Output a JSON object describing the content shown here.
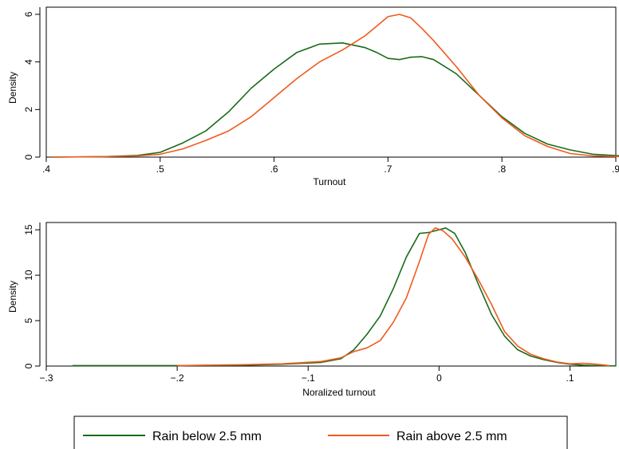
{
  "colors": {
    "below": "#1a6b1a",
    "above": "#f05a1e"
  },
  "legend": {
    "placement": "bottom",
    "entries": [
      {
        "series": "below",
        "label": "Rain below 2.5 mm"
      },
      {
        "series": "above",
        "label": "Rain above 2.5 mm"
      }
    ]
  },
  "chart_data": [
    {
      "type": "line",
      "xlabel": "Turnout",
      "ylabel": "Density",
      "xlim": [
        0.4,
        0.9
      ],
      "ylim": [
        0,
        6.3
      ],
      "xticks": [
        {
          "v": 0.4,
          "t": ".4"
        },
        {
          "v": 0.5,
          "t": ".5"
        },
        {
          "v": 0.6,
          "t": ".6"
        },
        {
          "v": 0.7,
          "t": ".7"
        },
        {
          "v": 0.8,
          "t": ".8"
        },
        {
          "v": 0.9,
          "t": ".9"
        }
      ],
      "yticks": [
        {
          "v": 0,
          "t": "0"
        },
        {
          "v": 2,
          "t": "2"
        },
        {
          "v": 4,
          "t": "4"
        },
        {
          "v": 6,
          "t": "6"
        }
      ],
      "grid": false,
      "series": [
        {
          "key": "below",
          "name": "Rain below 2.5 mm",
          "x": [
            0.405,
            0.45,
            0.48,
            0.5,
            0.52,
            0.54,
            0.56,
            0.58,
            0.6,
            0.62,
            0.64,
            0.66,
            0.68,
            0.69,
            0.7,
            0.71,
            0.72,
            0.73,
            0.74,
            0.75,
            0.76,
            0.78,
            0.8,
            0.82,
            0.84,
            0.86,
            0.88,
            0.905
          ],
          "y": [
            0.0,
            0.02,
            0.07,
            0.2,
            0.6,
            1.1,
            1.9,
            2.9,
            3.7,
            4.4,
            4.75,
            4.8,
            4.6,
            4.4,
            4.15,
            4.1,
            4.2,
            4.22,
            4.1,
            3.8,
            3.5,
            2.6,
            1.7,
            1.0,
            0.55,
            0.3,
            0.12,
            0.05
          ]
        },
        {
          "key": "above",
          "name": "Rain above 2.5 mm",
          "x": [
            0.405,
            0.45,
            0.48,
            0.5,
            0.52,
            0.54,
            0.56,
            0.58,
            0.6,
            0.62,
            0.64,
            0.66,
            0.67,
            0.68,
            0.69,
            0.7,
            0.71,
            0.72,
            0.73,
            0.74,
            0.76,
            0.78,
            0.8,
            0.82,
            0.84,
            0.86,
            0.88,
            0.905
          ],
          "y": [
            0.0,
            0.02,
            0.05,
            0.12,
            0.35,
            0.7,
            1.1,
            1.7,
            2.5,
            3.3,
            4.0,
            4.5,
            4.8,
            5.1,
            5.5,
            5.9,
            6.0,
            5.85,
            5.4,
            4.9,
            3.8,
            2.6,
            1.65,
            0.9,
            0.45,
            0.15,
            0.05,
            0.02
          ]
        }
      ]
    },
    {
      "type": "line",
      "xlabel": "Noralized turnout",
      "ylabel": "Density",
      "xlim": [
        -0.3,
        0.135
      ],
      "ylim": [
        0,
        15.8
      ],
      "xticks": [
        {
          "v": -0.3,
          "t": "−.3"
        },
        {
          "v": -0.2,
          "t": "−.2"
        },
        {
          "v": -0.1,
          "t": "−.1"
        },
        {
          "v": 0,
          "t": "0"
        },
        {
          "v": 0.1,
          "t": ".1"
        }
      ],
      "yticks": [
        {
          "v": 0,
          "t": "0"
        },
        {
          "v": 5,
          "t": "5"
        },
        {
          "v": 10,
          "t": "10"
        },
        {
          "v": 15,
          "t": "15"
        }
      ],
      "grid": false,
      "series": [
        {
          "key": "below",
          "name": "Rain below 2.5 mm",
          "x": [
            -0.28,
            -0.2,
            -0.15,
            -0.12,
            -0.09,
            -0.075,
            -0.065,
            -0.055,
            -0.045,
            -0.035,
            -0.025,
            -0.015,
            -0.008,
            0.0,
            0.005,
            0.012,
            0.02,
            0.03,
            0.04,
            0.05,
            0.06,
            0.07,
            0.08,
            0.09,
            0.1,
            0.11,
            0.12,
            0.135
          ],
          "y": [
            0.05,
            0.05,
            0.1,
            0.2,
            0.4,
            0.8,
            1.8,
            3.5,
            5.5,
            8.5,
            12.0,
            14.6,
            14.7,
            15.0,
            15.2,
            14.6,
            12.5,
            9.0,
            5.7,
            3.3,
            1.8,
            1.1,
            0.7,
            0.4,
            0.2,
            0.1,
            0.05,
            0.02
          ]
        },
        {
          "key": "above",
          "name": "Rain above 2.5 mm",
          "x": [
            -0.2,
            -0.15,
            -0.12,
            -0.09,
            -0.075,
            -0.065,
            -0.055,
            -0.045,
            -0.035,
            -0.025,
            -0.015,
            -0.008,
            -0.003,
            0.003,
            0.01,
            0.02,
            0.03,
            0.04,
            0.05,
            0.06,
            0.07,
            0.08,
            0.09,
            0.1,
            0.11,
            0.12,
            0.13
          ],
          "y": [
            0.05,
            0.15,
            0.25,
            0.5,
            0.9,
            1.6,
            2.0,
            2.8,
            4.8,
            7.5,
            11.5,
            14.5,
            15.2,
            14.9,
            14.0,
            12.0,
            9.5,
            6.8,
            3.8,
            2.2,
            1.3,
            0.8,
            0.45,
            0.25,
            0.3,
            0.2,
            0.05
          ]
        }
      ]
    }
  ]
}
